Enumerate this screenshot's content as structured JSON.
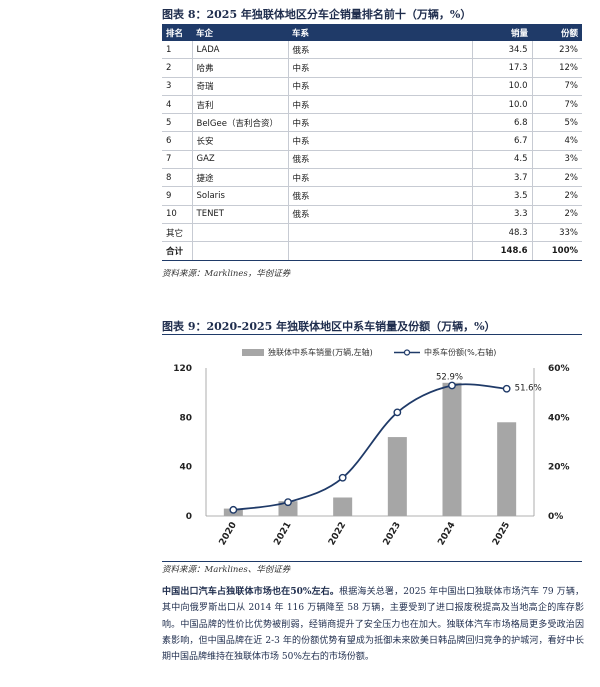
{
  "table8": {
    "caption": "图表 8：2025 年独联体地区分车企销量排名前十（万辆，%）",
    "headers": [
      "排名",
      "车企",
      "车系",
      "销量",
      "份额"
    ],
    "rows": [
      [
        "1",
        "LADA",
        "俄系",
        "34.5",
        "23%"
      ],
      [
        "2",
        "哈弗",
        "中系",
        "17.3",
        "12%"
      ],
      [
        "3",
        "奇瑞",
        "中系",
        "10.0",
        "7%"
      ],
      [
        "4",
        "吉利",
        "中系",
        "10.0",
        "7%"
      ],
      [
        "5",
        "BelGee（吉利合资）",
        "中系",
        "6.8",
        "5%"
      ],
      [
        "6",
        "长安",
        "中系",
        "6.7",
        "4%"
      ],
      [
        "7",
        "GAZ",
        "俄系",
        "4.5",
        "3%"
      ],
      [
        "8",
        "捷途",
        "中系",
        "3.7",
        "2%"
      ],
      [
        "9",
        "Solaris",
        "俄系",
        "3.5",
        "2%"
      ],
      [
        "10",
        "TENET",
        "俄系",
        "3.3",
        "2%"
      ],
      [
        "其它",
        "",
        "",
        "48.3",
        "33%"
      ]
    ],
    "total": [
      "合计",
      "",
      "",
      "148.6",
      "100%"
    ],
    "source": "资料来源：Marklines，华创证券"
  },
  "figure9": {
    "caption": "图表 9：2020-2025 年独联体地区中系车销量及份额（万辆，%）",
    "source": "资料来源：Marklines、华创证券"
  },
  "chart_data": {
    "type": "bar",
    "categories": [
      "2020",
      "2021",
      "2022",
      "2023",
      "2024",
      "2025"
    ],
    "series": [
      {
        "name": "独联体中系车销量(万辆,左轴)",
        "type": "bar",
        "axis": "left",
        "values": [
          6,
          12,
          15,
          64,
          108,
          76
        ],
        "color": "#a6a6a6"
      },
      {
        "name": "中系车份额(%,右轴)",
        "type": "line",
        "axis": "right",
        "values": [
          2.5,
          5.6,
          15.5,
          42,
          52.9,
          51.6
        ],
        "color": "#1f3a68"
      }
    ],
    "data_labels": [
      "52.9%",
      "51.6%"
    ],
    "y_left": {
      "min": 0,
      "max": 120,
      "ticks": [
        "0",
        "40",
        "80",
        "120"
      ]
    },
    "y_right": {
      "min": 0,
      "max": 60,
      "ticks": [
        "0%",
        "20%",
        "40%",
        "60%"
      ]
    },
    "legend_position": "top",
    "grid": false
  },
  "paragraph": {
    "lead": "中国出口汽车占独联体市场也在50%左右。",
    "body": "根据海关总署，2025 年中国出口独联体市场汽车 79 万辆，其中向俄罗斯出口从 2014 年 116 万辆降至 58 万辆，主要受到了进口报废税提高及当地高企的库存影响。中国品牌的性价比优势被削弱，经销商提升了安全压力也在加大。独联体汽车市场格局更多受政治因素影响，但中国品牌在近 2-3 年的份额优势有望成为抵御未来欧美日韩品牌回归竞争的护城河，看好中长期中国品牌维持在独联体市场 50%左右的市场份额。"
  }
}
